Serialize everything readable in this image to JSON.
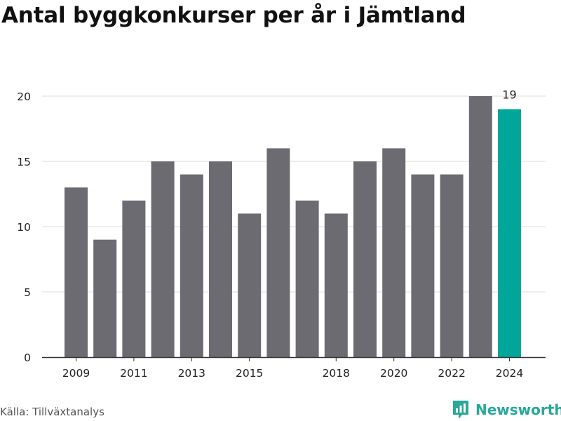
{
  "title": "Antal byggkonkurser per år i Jämtland",
  "source": "Källa: Tillväxtanalys",
  "brand": {
    "name": "Newsworthy",
    "icon": "newsworthy-logo-icon"
  },
  "colors": {
    "bar": "#6c6b71",
    "highlight": "#00a69a",
    "grid": "#dddddd",
    "axis": "#333333",
    "brand": "#28a79b"
  },
  "chart_data": {
    "type": "bar",
    "categories": [
      "2009",
      "2010",
      "2011",
      "2012",
      "2013",
      "2014",
      "2015",
      "2016",
      "2017",
      "2018",
      "2019",
      "2020",
      "2021",
      "2022",
      "2023",
      "2024"
    ],
    "values": [
      13,
      9,
      12,
      15,
      14,
      15,
      11,
      16,
      12,
      11,
      15,
      16,
      14,
      14,
      20,
      19
    ],
    "x_tick_labels": [
      "2009",
      "2011",
      "2013",
      "2015",
      "2018",
      "2020",
      "2022",
      "2024"
    ],
    "y_ticks": [
      0,
      5,
      10,
      15,
      20
    ],
    "ylim": [
      0,
      20
    ],
    "highlight_category": "2024",
    "data_labels": [
      {
        "category": "2024",
        "text": "19"
      }
    ],
    "grid": true,
    "title": "Antal byggkonkurser per år i Jämtland",
    "xlabel": "",
    "ylabel": ""
  }
}
